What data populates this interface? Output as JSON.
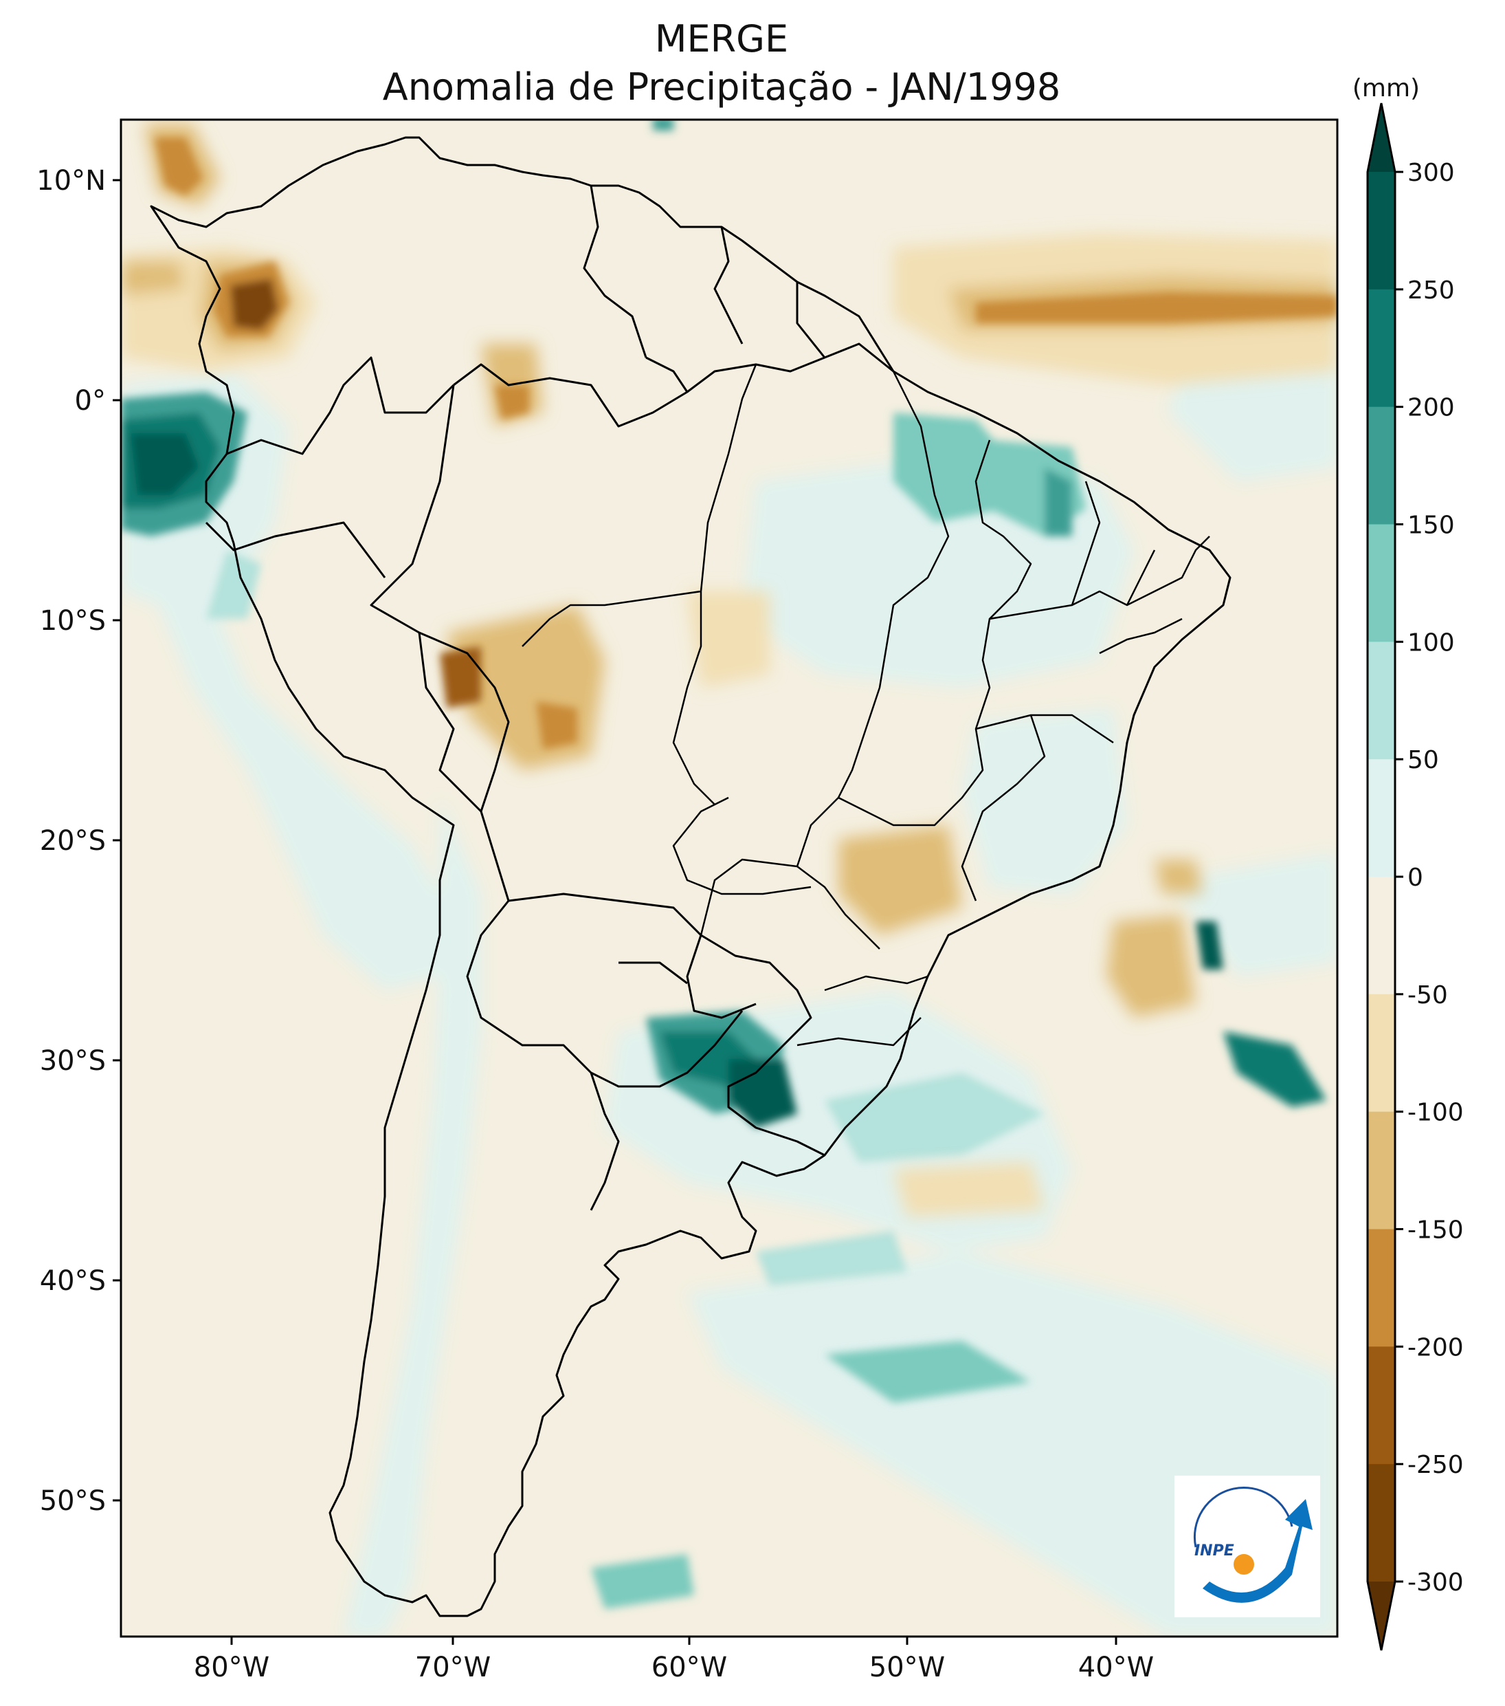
{
  "title": {
    "line1": "MERGE",
    "line2": "Anomalia de Precipitação - JAN/1998"
  },
  "map": {
    "lon_labels": [
      "80°W",
      "70°W",
      "60°W",
      "50°W",
      "40°W"
    ],
    "lat_labels": [
      "10°N",
      "0°",
      "10°S",
      "20°S",
      "30°S",
      "40°S",
      "50°S"
    ],
    "extent": {
      "lon_min": -85,
      "lon_max": -30,
      "lat_min": -56,
      "lat_max": 13
    }
  },
  "colorbar": {
    "unit": "(mm)",
    "levels": [
      "300",
      "250",
      "200",
      "150",
      "100",
      "50",
      "0",
      "-50",
      "-100",
      "-150",
      "-200",
      "-250",
      "-300"
    ],
    "colors_top_to_bottom": [
      "#01423b",
      "#025a51",
      "#0f7a70",
      "#3d9f94",
      "#7ccbbe",
      "#b4e2dc",
      "#e0f2ef",
      "#f4efe0",
      "#f2dfb4",
      "#e0bd78",
      "#c98b37",
      "#9c5b13",
      "#7b4508",
      "#5c3205"
    ]
  },
  "logo": {
    "text": "INPE"
  }
}
